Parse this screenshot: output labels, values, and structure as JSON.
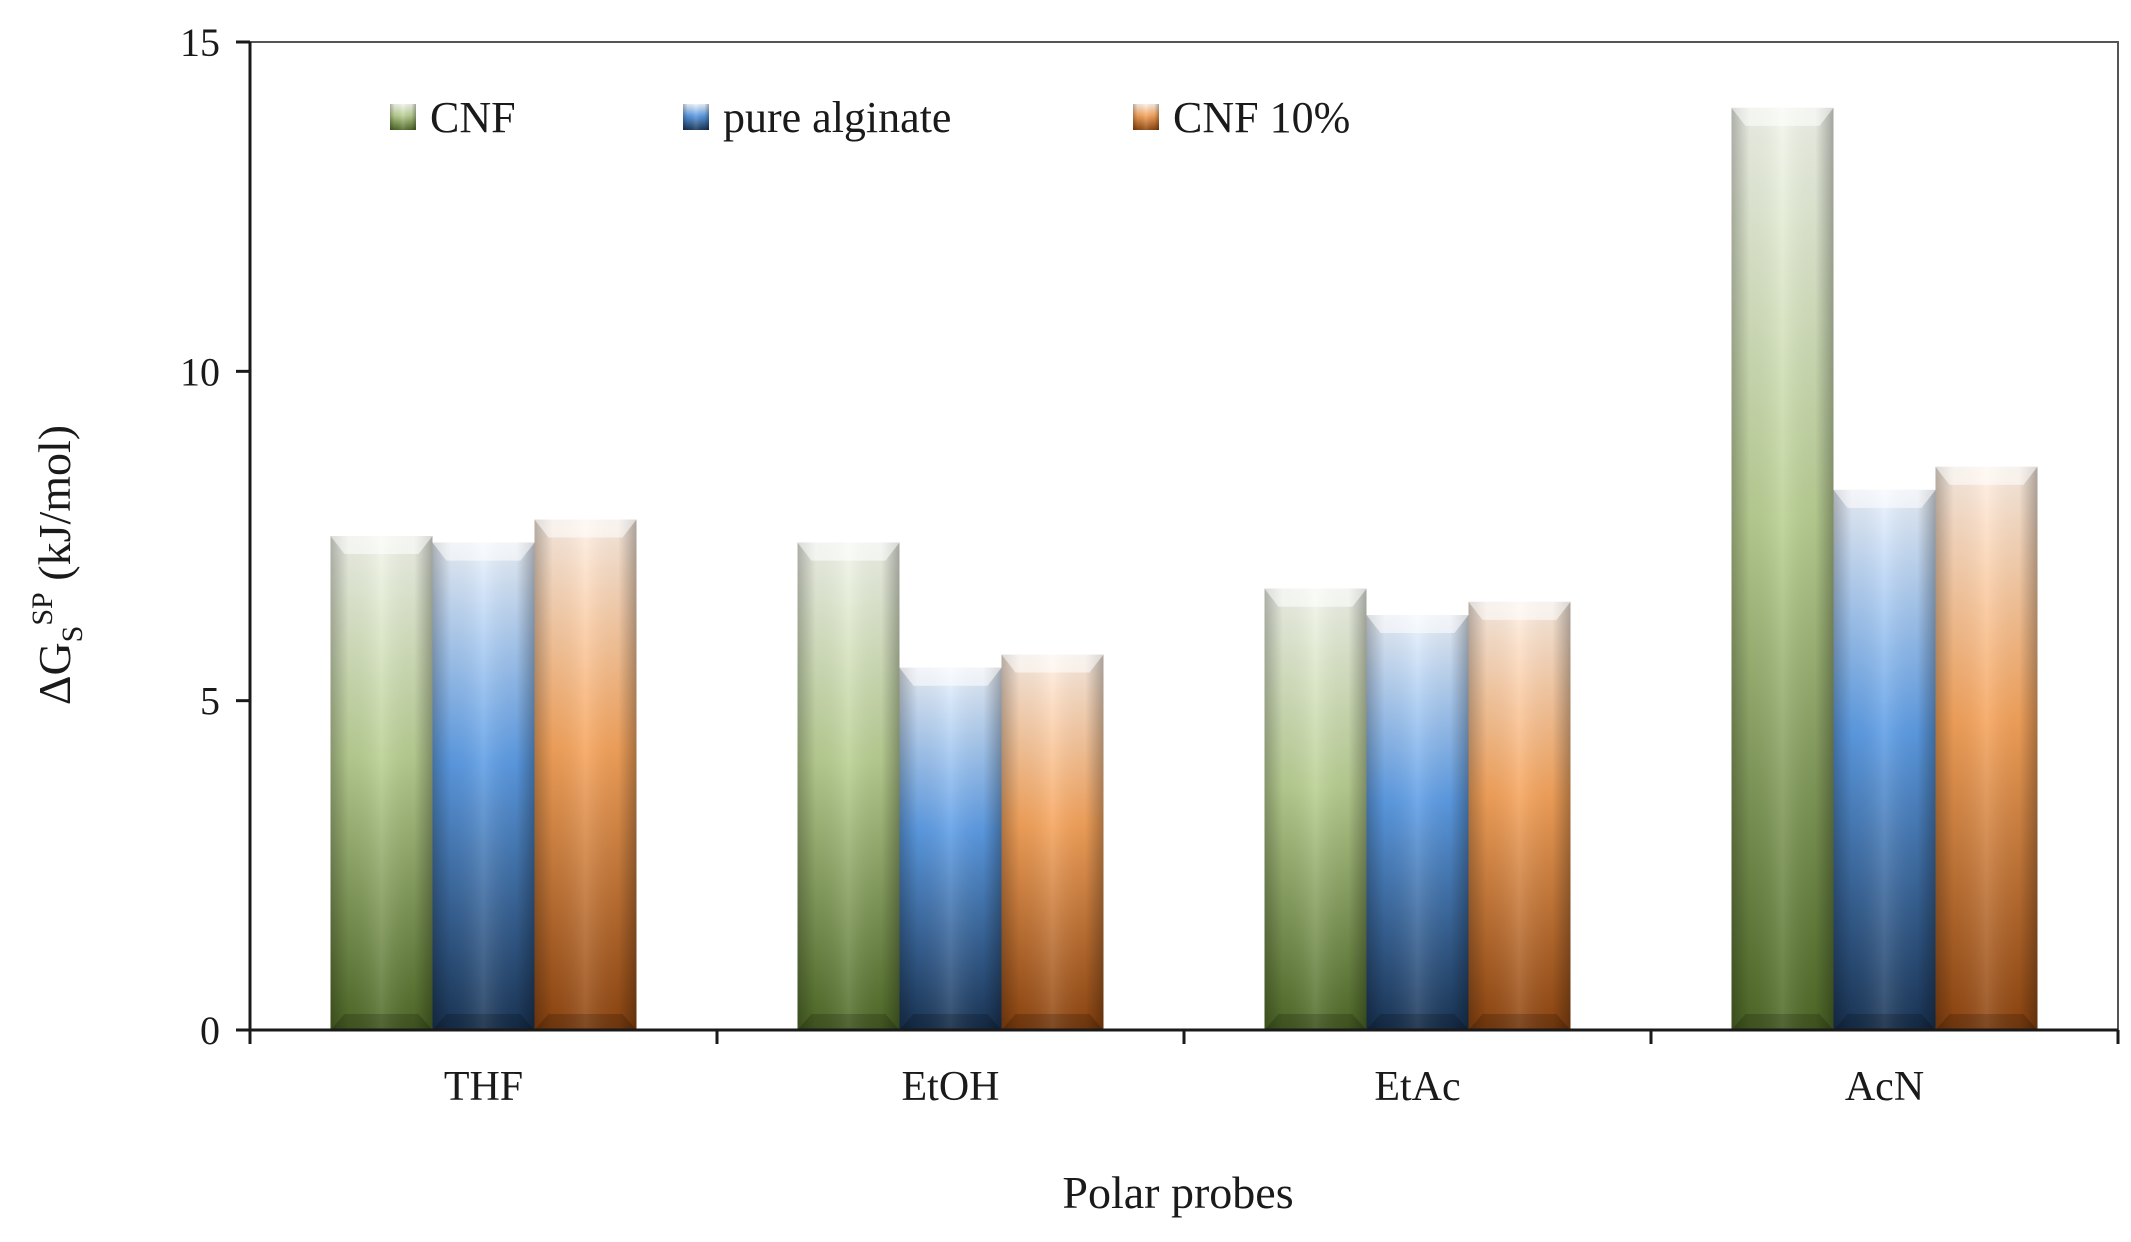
{
  "chart_data": {
    "type": "bar",
    "title": "",
    "xlabel": "Polar probes",
    "ylabel": {
      "prefix": "ΔG",
      "sub": "S",
      "sup": "SP",
      "unit": " (kJ/mol)"
    },
    "ylim": [
      0,
      15
    ],
    "yticks": [
      0,
      5,
      10,
      15
    ],
    "categories": [
      "THF",
      "EtOH",
      "EtAc",
      "AcN"
    ],
    "series": [
      {
        "name": "CNF",
        "values": [
          7.5,
          7.4,
          6.7,
          14.0
        ]
      },
      {
        "name": "pure alginate",
        "values": [
          7.4,
          5.5,
          6.3,
          8.2
        ]
      },
      {
        "name": "CNF 10%",
        "values": [
          7.75,
          5.7,
          6.5,
          8.55
        ]
      }
    ],
    "legend_position": "top-left"
  },
  "colors": {
    "CNF": {
      "light": "#f2f5ec",
      "mid": "#b9cf92",
      "dark": "#4f6a27"
    },
    "pure alginate": {
      "light": "#eef4fc",
      "mid": "#5d9de6",
      "dark": "#1a3556"
    },
    "CNF 10%": {
      "light": "#fdf0e6",
      "mid": "#f6a45c",
      "dark": "#8e4510"
    },
    "axis": "#1a1a1a"
  }
}
